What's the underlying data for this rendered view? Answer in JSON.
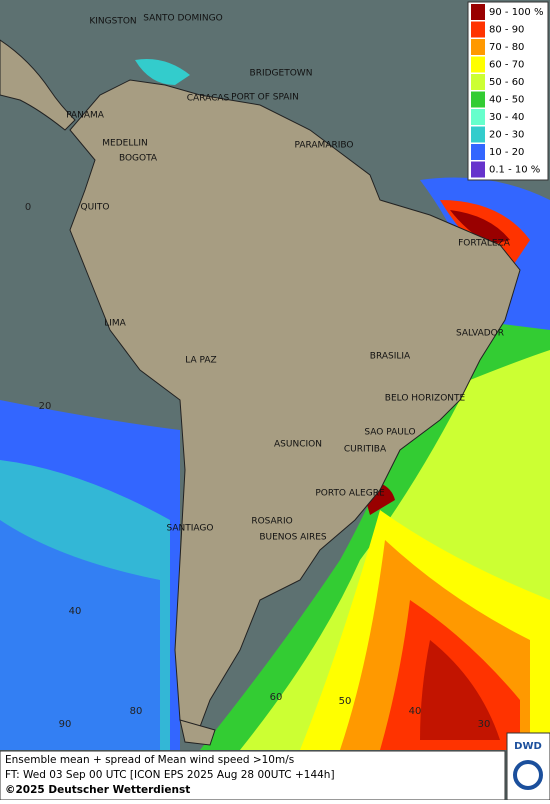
{
  "map": {
    "cities": [
      "KINGSTON",
      "SANTO DOMINGO",
      "BRIDGETOWN",
      "CARACAS",
      "PORT OF SPAIN",
      "PANAMA",
      "MEDELLIN",
      "BOGOTA",
      "PARAMARIBO",
      "QUITO",
      "FORTALEZA",
      "LIMA",
      "SALVADOR",
      "LA PAZ",
      "BRASILIA",
      "BELO HORIZONTE",
      "SAO PAULO",
      "CURITIBA",
      "ASUNCION",
      "PORTO ALEGRE",
      "ROSARIO",
      "BUENOS AIRES",
      "SANTIAGO"
    ],
    "grid_labels": [
      "0",
      "20",
      "40",
      "80",
      "90",
      "60",
      "50",
      "40",
      "30"
    ]
  },
  "legend": [
    {
      "label": "90 - 100 %",
      "color": "#990000"
    },
    {
      "label": "80 - 90",
      "color": "#ff3300"
    },
    {
      "label": "70 - 80",
      "color": "#ff9900"
    },
    {
      "label": "60 - 70",
      "color": "#ffff00"
    },
    {
      "label": "50 - 60",
      "color": "#ccff33"
    },
    {
      "label": "40 - 50",
      "color": "#33cc33"
    },
    {
      "label": "30 - 40",
      "color": "#66ffcc"
    },
    {
      "label": "20 - 30",
      "color": "#33cccc"
    },
    {
      "label": "10 - 20",
      "color": "#3366ff"
    },
    {
      "label": "0.1 - 10 %",
      "color": "#6633cc"
    }
  ],
  "footer": {
    "line1": "Ensemble mean + spread of Mean wind speed >10m/s",
    "line2": "FT: Wed 03 Sep 00 UTC [ICON EPS 2025 Aug 28 00UTC +144h]",
    "line3": "©2025 Deutscher Wetterdienst",
    "logo": "DWD"
  }
}
